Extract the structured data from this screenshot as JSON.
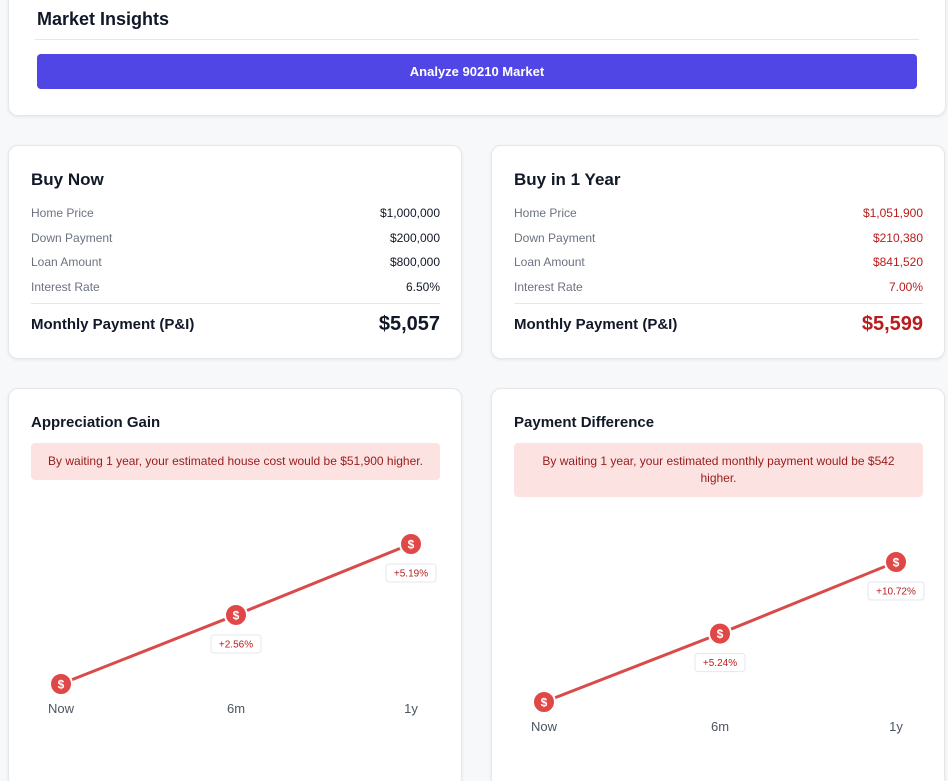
{
  "market_insights": {
    "title": "Market Insights",
    "analyze_button": "Analyze 90210 Market"
  },
  "buy_now": {
    "title": "Buy Now",
    "rows": [
      {
        "label": "Home Price",
        "value": "$1,000,000"
      },
      {
        "label": "Down Payment",
        "value": "$200,000"
      },
      {
        "label": "Loan Amount",
        "value": "$800,000"
      },
      {
        "label": "Interest Rate",
        "value": "6.50%"
      }
    ],
    "monthly_label": "Monthly Payment (P&I)",
    "monthly_value": "$5,057"
  },
  "buy_later": {
    "title": "Buy in 1 Year",
    "rows": [
      {
        "label": "Home Price",
        "value": "$1,051,900"
      },
      {
        "label": "Down Payment",
        "value": "$210,380"
      },
      {
        "label": "Loan Amount",
        "value": "$841,520"
      },
      {
        "label": "Interest Rate",
        "value": "7.00%"
      }
    ],
    "monthly_label": "Monthly Payment (P&I)",
    "monthly_value": "$5,599"
  },
  "appreciation": {
    "title": "Appreciation Gain",
    "note": "By waiting 1 year, your estimated house cost would be $51,900 higher."
  },
  "payment_difference": {
    "title": "Payment Difference",
    "note": "By waiting 1 year, your estimated monthly payment would be $542 higher."
  },
  "colors": {
    "accent": "#4f46e5",
    "line": "#d94b4b",
    "marker": "#e04848",
    "negative_text": "#b91c1c",
    "note_bg": "#fde2e2"
  },
  "marker_icon": "dollar-icon",
  "chart_data": [
    {
      "type": "line",
      "categories": [
        "Now",
        "6m",
        "1y"
      ],
      "series": [
        {
          "values": [
            0,
            2.56,
            5.19
          ]
        }
      ],
      "point_labels": [
        "",
        "+2.56%",
        "+5.19%"
      ],
      "unit": "%",
      "ylim": [
        0,
        5.19
      ],
      "grid": false,
      "legend": "none"
    },
    {
      "type": "line",
      "categories": [
        "Now",
        "6m",
        "1y"
      ],
      "series": [
        {
          "values": [
            0,
            5.24,
            10.72
          ]
        }
      ],
      "point_labels": [
        "",
        "+5.24%",
        "+10.72%"
      ],
      "unit": "%",
      "ylim": [
        0,
        10.72
      ],
      "grid": false,
      "legend": "none"
    }
  ]
}
